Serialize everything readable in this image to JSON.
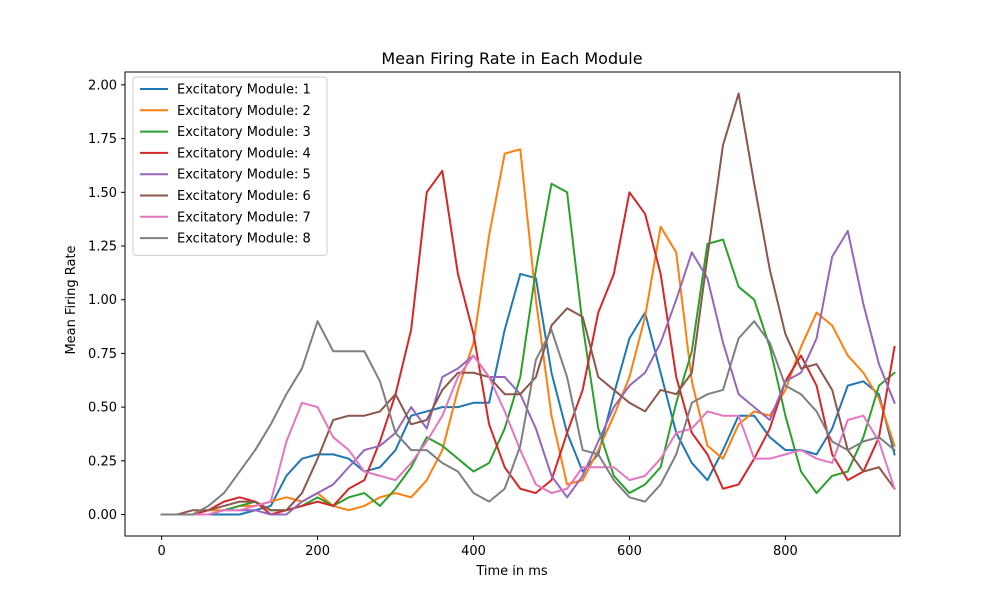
{
  "chart_data": {
    "type": "line",
    "title": "Mean Firing Rate in Each Module",
    "xlabel": "Time in ms",
    "ylabel": "Mean Firing Rate",
    "xlim": [
      -47,
      947
    ],
    "ylim": [
      -0.1,
      2.06
    ],
    "xticks": [
      0,
      200,
      400,
      600,
      800
    ],
    "yticks": [
      0.0,
      0.25,
      0.5,
      0.75,
      1.0,
      1.25,
      1.5,
      1.75,
      2.0
    ],
    "xtick_labels": [
      "0",
      "200",
      "400",
      "600",
      "800"
    ],
    "ytick_labels": [
      "0.00",
      "0.25",
      "0.50",
      "0.75",
      "1.00",
      "1.25",
      "1.50",
      "1.75",
      "2.00"
    ],
    "grid": false,
    "legend_position": "upper-left",
    "x": [
      0,
      20,
      40,
      60,
      80,
      100,
      120,
      140,
      160,
      180,
      200,
      220,
      240,
      260,
      280,
      300,
      320,
      340,
      360,
      380,
      400,
      420,
      440,
      460,
      480,
      500,
      520,
      540,
      560,
      580,
      600,
      620,
      640,
      660,
      680,
      700,
      720,
      740,
      760,
      780,
      800,
      820,
      840,
      860,
      880,
      900,
      920,
      940
    ],
    "series": [
      {
        "name": "Excitatory Module: 1",
        "color": "#1f77b4",
        "values": [
          0,
          0,
          0,
          0,
          0,
          0,
          0.02,
          0.04,
          0.18,
          0.26,
          0.28,
          0.28,
          0.26,
          0.2,
          0.22,
          0.3,
          0.46,
          0.48,
          0.5,
          0.5,
          0.52,
          0.52,
          0.86,
          1.12,
          1.1,
          0.66,
          0.38,
          0.2,
          0.28,
          0.56,
          0.82,
          0.94,
          0.66,
          0.38,
          0.24,
          0.16,
          0.3,
          0.46,
          0.46,
          0.36,
          0.3,
          0.3,
          0.28,
          0.4,
          0.6,
          0.62,
          0.56,
          0.28
        ]
      },
      {
        "name": "Excitatory Module: 2",
        "color": "#ff7f0e",
        "values": [
          0,
          0,
          0,
          0.02,
          0.02,
          0.04,
          0.04,
          0.06,
          0.08,
          0.06,
          0.1,
          0.04,
          0.02,
          0.04,
          0.08,
          0.1,
          0.08,
          0.16,
          0.3,
          0.58,
          0.8,
          1.3,
          1.68,
          1.7,
          1.0,
          0.46,
          0.14,
          0.16,
          0.3,
          0.46,
          0.64,
          0.92,
          1.34,
          1.22,
          0.62,
          0.32,
          0.26,
          0.42,
          0.48,
          0.46,
          0.58,
          0.78,
          0.94,
          0.88,
          0.74,
          0.66,
          0.54,
          0.32
        ]
      },
      {
        "name": "Excitatory Module: 3",
        "color": "#2ca02c",
        "values": [
          0,
          0,
          0,
          0,
          0.02,
          0.04,
          0.06,
          0.02,
          0.02,
          0.04,
          0.08,
          0.04,
          0.08,
          0.1,
          0.04,
          0.12,
          0.22,
          0.36,
          0.32,
          0.26,
          0.2,
          0.24,
          0.4,
          0.64,
          1.14,
          1.54,
          1.5,
          0.88,
          0.4,
          0.18,
          0.1,
          0.14,
          0.22,
          0.52,
          0.76,
          1.26,
          1.28,
          1.06,
          1.0,
          0.78,
          0.46,
          0.2,
          0.1,
          0.18,
          0.2,
          0.36,
          0.6,
          0.66
        ]
      },
      {
        "name": "Excitatory Module: 4",
        "color": "#d62728",
        "values": [
          0,
          0,
          0,
          0.02,
          0.06,
          0.08,
          0.06,
          0,
          0.02,
          0.04,
          0.06,
          0.04,
          0.12,
          0.16,
          0.34,
          0.56,
          0.86,
          1.5,
          1.6,
          1.12,
          0.84,
          0.42,
          0.22,
          0.12,
          0.1,
          0.16,
          0.38,
          0.58,
          0.94,
          1.12,
          1.5,
          1.4,
          1.12,
          0.64,
          0.38,
          0.28,
          0.12,
          0.14,
          0.26,
          0.4,
          0.62,
          0.74,
          0.6,
          0.28,
          0.16,
          0.2,
          0.36,
          0.78
        ]
      },
      {
        "name": "Excitatory Module: 5",
        "color": "#9467bd",
        "values": [
          0,
          0,
          0,
          0,
          0.02,
          0.02,
          0.02,
          0,
          0,
          0.06,
          0.1,
          0.14,
          0.22,
          0.3,
          0.32,
          0.38,
          0.5,
          0.4,
          0.64,
          0.68,
          0.74,
          0.64,
          0.64,
          0.56,
          0.4,
          0.18,
          0.08,
          0.18,
          0.34,
          0.5,
          0.6,
          0.66,
          0.8,
          1.0,
          1.22,
          1.1,
          0.8,
          0.56,
          0.5,
          0.44,
          0.62,
          0.66,
          0.82,
          1.2,
          1.32,
          0.98,
          0.7,
          0.52
        ]
      },
      {
        "name": "Excitatory Module: 6",
        "color": "#8c564b",
        "values": [
          0,
          0,
          0.02,
          0.02,
          0.04,
          0.06,
          0.06,
          0.02,
          0.02,
          0.1,
          0.26,
          0.44,
          0.46,
          0.46,
          0.48,
          0.56,
          0.42,
          0.44,
          0.58,
          0.66,
          0.66,
          0.64,
          0.56,
          0.56,
          0.64,
          0.88,
          0.96,
          0.92,
          0.64,
          0.58,
          0.52,
          0.48,
          0.58,
          0.56,
          0.66,
          1.2,
          1.72,
          1.96,
          1.54,
          1.14,
          0.84,
          0.68,
          0.7,
          0.58,
          0.3,
          0.2,
          0.22,
          0.12
        ]
      },
      {
        "name": "Excitatory Module: 7",
        "color": "#e377c2",
        "values": [
          0,
          0,
          0,
          0,
          0.02,
          0.02,
          0.04,
          0.06,
          0.34,
          0.52,
          0.5,
          0.36,
          0.3,
          0.2,
          0.18,
          0.16,
          0.24,
          0.34,
          0.46,
          0.64,
          0.74,
          0.64,
          0.48,
          0.3,
          0.14,
          0.1,
          0.12,
          0.22,
          0.22,
          0.22,
          0.16,
          0.18,
          0.26,
          0.38,
          0.4,
          0.48,
          0.46,
          0.46,
          0.26,
          0.26,
          0.28,
          0.3,
          0.26,
          0.24,
          0.44,
          0.46,
          0.34,
          0.12
        ]
      },
      {
        "name": "Excitatory Module: 8",
        "color": "#7f7f7f",
        "values": [
          0,
          0,
          0,
          0.04,
          0.1,
          0.2,
          0.3,
          0.42,
          0.56,
          0.68,
          0.9,
          0.76,
          0.76,
          0.76,
          0.62,
          0.38,
          0.3,
          0.3,
          0.24,
          0.2,
          0.1,
          0.06,
          0.12,
          0.32,
          0.72,
          0.86,
          0.64,
          0.3,
          0.28,
          0.16,
          0.08,
          0.06,
          0.14,
          0.28,
          0.52,
          0.56,
          0.58,
          0.82,
          0.9,
          0.8,
          0.6,
          0.56,
          0.48,
          0.34,
          0.3,
          0.34,
          0.36,
          0.3
        ]
      }
    ]
  }
}
